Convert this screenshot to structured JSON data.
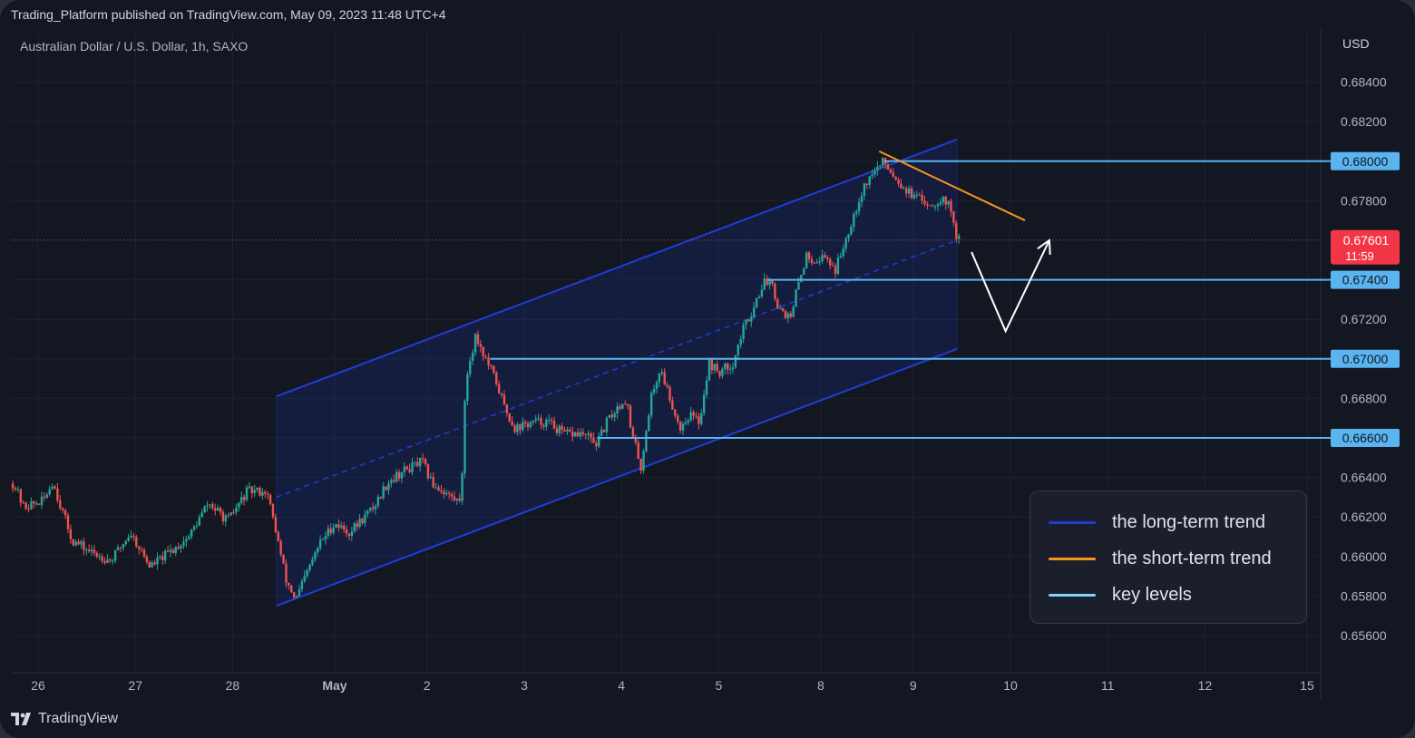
{
  "header": {
    "published": "Trading_Platform published on TradingView.com, May 09, 2023 11:48 UTC+4"
  },
  "symbol": {
    "title": "Australian Dollar / U.S. Dollar, 1h, SAXO",
    "currency": "USD"
  },
  "footer": {
    "brand": "TradingView"
  },
  "colors": {
    "up": "#26a69a",
    "down": "#ef5350",
    "background": "#131722",
    "channel": "#1f3dd6",
    "short_trend": "#f7941d",
    "key_level": "#5ab4f0",
    "price_label": "#f23645"
  },
  "legend": {
    "items": [
      {
        "label": "the long-term trend",
        "color": "#1f3dd6"
      },
      {
        "label": "the short-term trend",
        "color": "#f7941d"
      },
      {
        "label": "key levels",
        "color": "#7fd4f7"
      }
    ]
  },
  "chart_data": {
    "type": "candlestick",
    "title": "Australian Dollar / U.S. Dollar, 1h, SAXO",
    "y_unit": "USD",
    "ylim": [
      0.6547,
      0.6855
    ],
    "y_ticks": [
      "0.68400",
      "0.68200",
      "0.68000",
      "0.67800",
      "0.67600",
      "0.67400",
      "0.67200",
      "0.67000",
      "0.66800",
      "0.66600",
      "0.66400",
      "0.66200",
      "0.66000",
      "0.65800",
      "0.65600"
    ],
    "x_ticks": [
      {
        "label": "26",
        "day": 0
      },
      {
        "label": "27",
        "day": 1
      },
      {
        "label": "28",
        "day": 2
      },
      {
        "label": "May",
        "day": 3.05
      },
      {
        "label": "2",
        "day": 4
      },
      {
        "label": "3",
        "day": 5
      },
      {
        "label": "4",
        "day": 6
      },
      {
        "label": "5",
        "day": 7
      },
      {
        "label": "8",
        "day": 8.05
      },
      {
        "label": "9",
        "day": 9
      },
      {
        "label": "10",
        "day": 10
      },
      {
        "label": "11",
        "day": 11
      },
      {
        "label": "12",
        "day": 12
      },
      {
        "label": "15",
        "day": 13.05
      }
    ],
    "x_range_days": [
      -0.26,
      13.9
    ],
    "close_anchors": [
      [
        -0.25,
        0.6637
      ],
      [
        -0.15,
        0.6625
      ],
      [
        0.05,
        0.6628
      ],
      [
        0.15,
        0.6638
      ],
      [
        0.35,
        0.6608
      ],
      [
        0.55,
        0.6602
      ],
      [
        0.75,
        0.6598
      ],
      [
        0.95,
        0.6612
      ],
      [
        1.15,
        0.6595
      ],
      [
        1.35,
        0.6602
      ],
      [
        1.55,
        0.661
      ],
      [
        1.75,
        0.6627
      ],
      [
        1.95,
        0.6618
      ],
      [
        2.15,
        0.6633
      ],
      [
        2.35,
        0.6633
      ],
      [
        2.45,
        0.6612
      ],
      [
        2.55,
        0.6588
      ],
      [
        2.65,
        0.6578
      ],
      [
        2.75,
        0.659
      ],
      [
        2.9,
        0.6607
      ],
      [
        3.05,
        0.6617
      ],
      [
        3.2,
        0.6612
      ],
      [
        3.45,
        0.6625
      ],
      [
        3.6,
        0.6638
      ],
      [
        3.75,
        0.6643
      ],
      [
        3.95,
        0.6648
      ],
      [
        4.05,
        0.6637
      ],
      [
        4.2,
        0.6632
      ],
      [
        4.3,
        0.6628
      ],
      [
        4.35,
        0.663
      ],
      [
        4.4,
        0.669
      ],
      [
        4.5,
        0.6712
      ],
      [
        4.6,
        0.67
      ],
      [
        4.7,
        0.669
      ],
      [
        4.8,
        0.6675
      ],
      [
        4.9,
        0.6665
      ],
      [
        5.1,
        0.6668
      ],
      [
        5.25,
        0.6668
      ],
      [
        5.4,
        0.6662
      ],
      [
        5.6,
        0.6662
      ],
      [
        5.75,
        0.6657
      ],
      [
        5.85,
        0.6668
      ],
      [
        5.95,
        0.6675
      ],
      [
        6.05,
        0.668
      ],
      [
        6.1,
        0.6662
      ],
      [
        6.15,
        0.6655
      ],
      [
        6.2,
        0.6645
      ],
      [
        6.3,
        0.668
      ],
      [
        6.4,
        0.6695
      ],
      [
        6.5,
        0.668
      ],
      [
        6.6,
        0.6665
      ],
      [
        6.7,
        0.6672
      ],
      [
        6.8,
        0.6668
      ],
      [
        6.9,
        0.6698
      ],
      [
        7.0,
        0.6693
      ],
      [
        7.15,
        0.6698
      ],
      [
        7.25,
        0.6715
      ],
      [
        7.35,
        0.6725
      ],
      [
        7.45,
        0.6738
      ],
      [
        7.55,
        0.674
      ],
      [
        7.6,
        0.6727
      ],
      [
        7.65,
        0.6725
      ],
      [
        7.7,
        0.6722
      ],
      [
        7.75,
        0.672
      ],
      [
        7.8,
        0.6735
      ],
      [
        7.9,
        0.6752
      ],
      [
        8.0,
        0.675
      ],
      [
        8.1,
        0.6752
      ],
      [
        8.2,
        0.6745
      ],
      [
        8.3,
        0.676
      ],
      [
        8.4,
        0.6775
      ],
      [
        8.5,
        0.6788
      ],
      [
        8.6,
        0.6795
      ],
      [
        8.7,
        0.68
      ],
      [
        8.8,
        0.6793
      ],
      [
        8.9,
        0.6787
      ],
      [
        9.0,
        0.6782
      ],
      [
        9.1,
        0.678
      ],
      [
        9.2,
        0.6778
      ],
      [
        9.3,
        0.6782
      ],
      [
        9.4,
        0.6775
      ],
      [
        9.45,
        0.676
      ]
    ],
    "candle_days": [
      -0.26,
      9.47
    ],
    "channel": {
      "start_day": 2.45,
      "end_day": 9.45,
      "upper": [
        0.6681,
        0.6811
      ],
      "mid": [
        0.663,
        0.676
      ],
      "lower": [
        0.6575,
        0.6705
      ]
    },
    "short_term_trend": {
      "start": [
        8.65,
        0.6805
      ],
      "end": [
        10.15,
        0.677
      ]
    },
    "key_levels": [
      {
        "value": 0.68,
        "label": "0.68000",
        "start_day": 8.7
      },
      {
        "value": 0.674,
        "label": "0.67400",
        "start_day": 7.5
      },
      {
        "value": 0.67,
        "label": "0.67000",
        "start_day": 4.65
      },
      {
        "value": 0.666,
        "label": "0.66600",
        "start_day": 5.75
      }
    ],
    "projection": {
      "points": [
        [
          9.6,
          0.6754
        ],
        [
          9.95,
          0.6714
        ],
        [
          10.4,
          0.676
        ]
      ]
    },
    "current_price": {
      "value": 0.67601,
      "label": "0.67601",
      "countdown": "11:59"
    }
  }
}
